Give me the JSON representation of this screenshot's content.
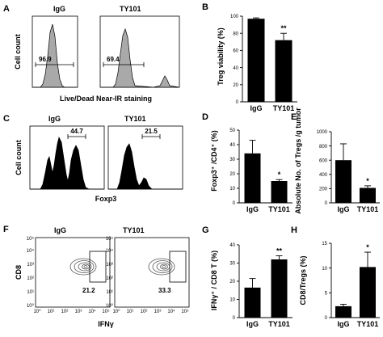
{
  "panels": {
    "A": {
      "letter": "A",
      "titles": [
        "IgG",
        "TY101"
      ],
      "gate_values": [
        "96.9",
        "69.4"
      ],
      "ylabel": "Cell count",
      "xlabel": "Live/Dead Near-IR staining"
    },
    "C": {
      "letter": "C",
      "titles": [
        "IgG",
        "TY101"
      ],
      "gate_values": [
        "44.7",
        "21.5"
      ],
      "ylabel": "Cell count",
      "xlabel": "Foxp3"
    },
    "F": {
      "letter": "F",
      "titles": [
        "IgG",
        "TY101"
      ],
      "gate_values": [
        "21.2",
        "33.3"
      ],
      "ylabel": "CD8",
      "xlabel": "IFNγ",
      "axis_ticks": [
        "10⁰",
        "10¹",
        "10²",
        "10³",
        "10⁴",
        "10⁵"
      ]
    }
  },
  "colors": {
    "hist_fill_A": "#a9a9a9",
    "hist_fill_C": "#000000",
    "bar_fill": "#000000",
    "contour": "#555555"
  },
  "chart_data": [
    {
      "id": "B",
      "type": "bar",
      "letter": "B",
      "categories": [
        "IgG",
        "TY101"
      ],
      "values": [
        97,
        72
      ],
      "errors": [
        1,
        8
      ],
      "significance": [
        "",
        "**"
      ],
      "ylabel": "Treg viability (%)",
      "ylim": [
        0,
        100
      ],
      "yticks": [
        "0",
        "20",
        "40",
        "60",
        "80",
        "100"
      ],
      "ytick_values": [
        0,
        20,
        40,
        60,
        80,
        100
      ]
    },
    {
      "id": "D",
      "type": "bar",
      "letter": "D",
      "categories": [
        "IgG",
        "TY101"
      ],
      "values": [
        34,
        15
      ],
      "errors": [
        9,
        1
      ],
      "significance": [
        "",
        "*"
      ],
      "ylabel": "Foxp3⁺ /CD4⁺ (%)",
      "ylim": [
        0,
        50
      ],
      "yticks": [
        "0",
        "10",
        "20",
        "30",
        "40",
        "50"
      ],
      "ytick_values": [
        0,
        10,
        20,
        30,
        40,
        50
      ]
    },
    {
      "id": "E",
      "type": "bar",
      "letter": "E",
      "categories": [
        "IgG",
        "TY101"
      ],
      "values": [
        600,
        210
      ],
      "errors": [
        230,
        30
      ],
      "significance": [
        "",
        "*"
      ],
      "ylabel": "Absolute No. of Tregs /g tumor",
      "ylim": [
        0,
        1000
      ],
      "yticks": [
        "0",
        "200",
        "400",
        "600",
        "800",
        "1000"
      ],
      "ytick_values": [
        0,
        200,
        400,
        600,
        800,
        1000
      ]
    },
    {
      "id": "G",
      "type": "bar",
      "letter": "G",
      "categories": [
        "IgG",
        "TY101"
      ],
      "values": [
        16.5,
        32
      ],
      "errors": [
        5,
        2
      ],
      "significance": [
        "",
        "**"
      ],
      "ylabel": "IFNγ⁺ / CD8 T (%)",
      "ylim": [
        0,
        40
      ],
      "yticks": [
        "0",
        "10",
        "20",
        "30",
        "40"
      ],
      "ytick_values": [
        0,
        10,
        20,
        30,
        40
      ]
    },
    {
      "id": "H",
      "type": "bar",
      "letter": "H",
      "categories": [
        "IgG",
        "TY101"
      ],
      "values": [
        2.3,
        10.2
      ],
      "errors": [
        0.4,
        3
      ],
      "significance": [
        "",
        "*"
      ],
      "ylabel": "CD8/Tregs (%)",
      "ylim": [
        0,
        15
      ],
      "yticks": [
        "0",
        "5",
        "10",
        "15"
      ],
      "ytick_values": [
        0,
        5,
        10,
        15
      ]
    }
  ]
}
